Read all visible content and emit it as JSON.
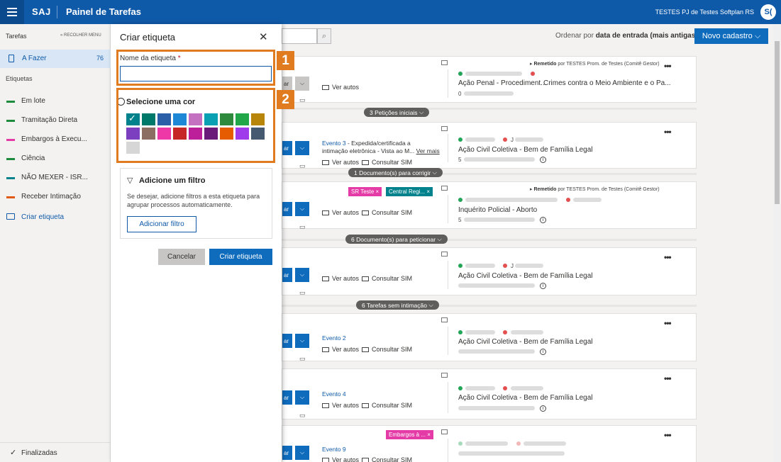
{
  "header": {
    "brand": "SAJ",
    "title": "Painel de Tarefas",
    "user": "TESTES PJ de Testes Softplan RS",
    "avatar": "S("
  },
  "sidebar": {
    "section_label": "Tarefas",
    "collapse_label": "« RECOLHER MENU",
    "active": {
      "label": "A Fazer",
      "count": "76"
    },
    "tags_label": "Etiquetas",
    "tags": [
      {
        "label": "Em lote",
        "color": "#1e8a3b"
      },
      {
        "label": "Tramitação Direta",
        "color": "#1e8a3b"
      },
      {
        "label": "Embargos à Execu...",
        "color": "#e43ba6"
      },
      {
        "label": "Ciência",
        "color": "#1e8a3b"
      },
      {
        "label": "NÃO MEXER - ISR...",
        "color": "#00828c"
      },
      {
        "label": "Receber Intimação",
        "color": "#e05a14"
      }
    ],
    "create_label": "Criar etiqueta",
    "footer_label": "Finalizadas"
  },
  "panel": {
    "title": "Criar etiqueta",
    "name_label": "Nome da etiqueta",
    "required_mark": "*",
    "name_value": "",
    "color_title": "Selecione uma cor",
    "colors": [
      "#00828c",
      "#00796b",
      "#2b5fa8",
      "#1e88d6",
      "#c471c1",
      "#0aa0b4",
      "#2e8b3e",
      "#21a649",
      "#b8860b",
      "#7b3fbf",
      "#8d6e63",
      "#ee38a8",
      "#c62828",
      "#bd1f9a",
      "#6a1b7a",
      "#e65c00",
      "#9f3bea",
      "#455a70",
      "#d6d6d6"
    ],
    "selected_color_index": 0,
    "filter_title": "Adicione um filtro",
    "filter_desc": "Se desejar, adicione filtros a esta etiqueta para agrupar processos automaticamente.",
    "filter_button": "Adicionar filtro",
    "cancel": "Cancelar",
    "create": "Criar etiqueta",
    "highlights": [
      "1",
      "2"
    ]
  },
  "main": {
    "order_prefix": "Ordenar por",
    "order_value": "data de entrada (mais antigas)",
    "new_button": "Novo cadastro",
    "cards": [
      {
        "class": "Ação Penal - Procediment...",
        "crime": "Crimes contra o Meio Ambiente e o Pa...",
        "links": [
          "Ver autos"
        ],
        "remetido": "Remetido",
        "remetido_to": "por TESTES Prom. de Testes (Comitê Gestor)",
        "small": "0"
      },
      {
        "class": "Ação Civil Coletiva - Bem de Família Legal",
        "event_num": "Evento 3",
        "event_text": "- Expedida/certificada a",
        "event_text2": "intimação eletrônica - Vista ao M...",
        "more_link": "Ver mais",
        "links": [
          "Ver autos",
          "Consultar SIM"
        ],
        "small": "5",
        "initial": "J"
      },
      {
        "class": "Inquérito Policial - Aborto",
        "chips": [
          "SR Teste",
          "Central Regi..."
        ],
        "links": [
          "Ver autos",
          "Consultar SIM"
        ],
        "remetido": "Remetido",
        "remetido_to": "por TESTES Prom. de Testes (Comitê Gestor)",
        "small": "5"
      },
      {
        "class": "Ação Civil Coletiva - Bem de Família Legal",
        "links": [
          "Ver autos",
          "Consultar SIM"
        ],
        "initial": "J"
      },
      {
        "class": "Ação Civil Coletiva - Bem de Família Legal",
        "event_num": "Evento 2",
        "links": [
          "Ver autos",
          "Consultar SIM"
        ]
      },
      {
        "class": "Ação Civil Coletiva - Bem de Família Legal",
        "event_num": "Evento 4",
        "links": [
          "Ver autos",
          "Consultar SIM"
        ]
      },
      {
        "event_num": "Evento 9",
        "chips": [
          "Embargos à ..."
        ],
        "links": [
          "Ver autos",
          "Consultar SIM"
        ]
      }
    ],
    "pills": [
      "3 Petições iniciais",
      "1 Documento(s) para corrigir",
      "6 Documento(s) para peticionar",
      "6 Tarefas sem intimação"
    ]
  }
}
